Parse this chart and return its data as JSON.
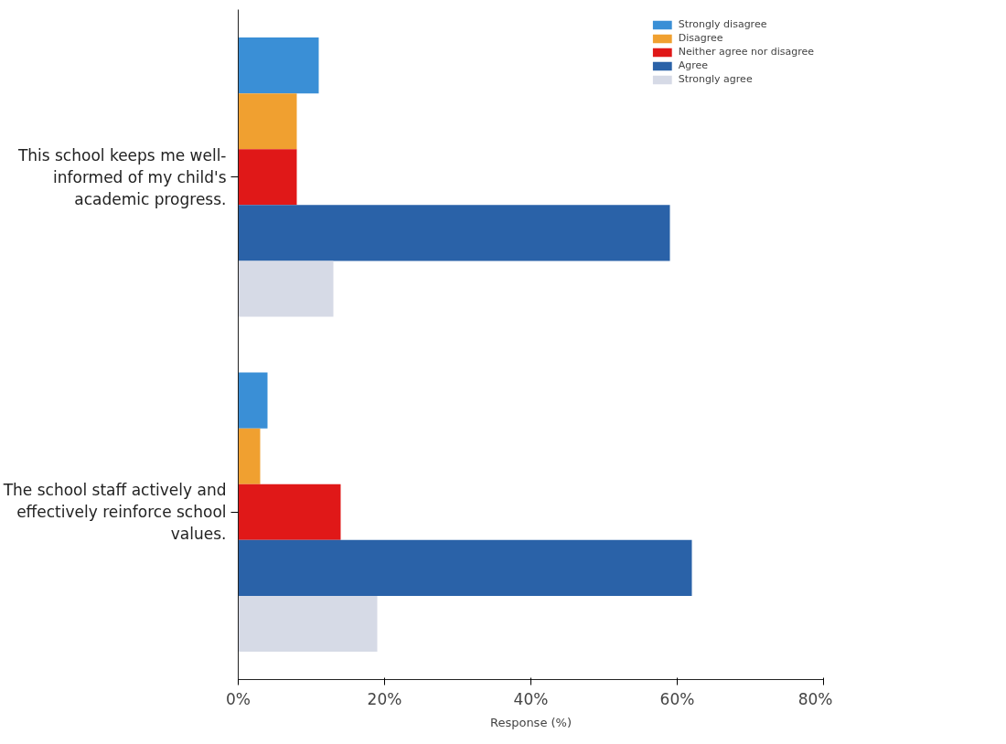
{
  "chart_data": {
    "type": "bar",
    "orientation": "horizontal",
    "xlabel": "Response (%)",
    "categories": [
      "This school keeps me well-informed of my child's academic progress.",
      "The school staff actively and effectively reinforce school values."
    ],
    "series": [
      {
        "name": "Strongly disagree",
        "color": "#3a8fd6",
        "values": [
          11,
          4
        ]
      },
      {
        "name": "Disagree",
        "color": "#f0a030",
        "values": [
          8,
          3
        ]
      },
      {
        "name": "Neither agree nor disagree",
        "color": "#e01818",
        "values": [
          8,
          14
        ]
      },
      {
        "name": "Agree",
        "color": "#2a62a8",
        "values": [
          59,
          62
        ]
      },
      {
        "name": "Strongly agree",
        "color": "#d6dae6",
        "values": [
          13,
          19
        ]
      }
    ],
    "xlim": [
      0,
      80
    ],
    "xticks": [
      {
        "value": 0,
        "label": "0%"
      },
      {
        "value": 20,
        "label": "20%"
      },
      {
        "value": 40,
        "label": "40%"
      },
      {
        "value": 60,
        "label": "60%"
      },
      {
        "value": 80,
        "label": "80%"
      }
    ],
    "grid": false,
    "legend": "top right"
  }
}
